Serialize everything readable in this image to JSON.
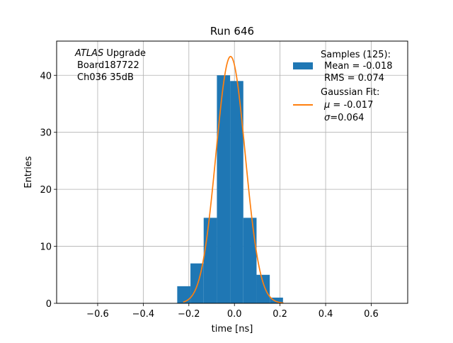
{
  "chart_data": {
    "type": "bar",
    "title": "Run 646",
    "xlabel": "time [ns]",
    "ylabel": "Entries",
    "xlim": [
      -0.78,
      0.76
    ],
    "ylim": [
      0,
      46
    ],
    "grid": true,
    "xticks": [
      "−0.6",
      "−0.4",
      "−0.2",
      "0.0",
      "0.2",
      "0.4",
      "0.6"
    ],
    "xtick_values": [
      -0.6,
      -0.4,
      -0.2,
      0.0,
      0.2,
      0.4,
      0.6
    ],
    "yticks": [
      "0",
      "10",
      "20",
      "30",
      "40"
    ],
    "ytick_values": [
      0,
      10,
      20,
      30,
      40
    ],
    "histogram": {
      "name": "Samples (125):",
      "color": "#1f77b4",
      "bin_edges": [
        -0.251,
        -0.193,
        -0.135,
        -0.077,
        -0.019,
        0.039,
        0.097,
        0.155,
        0.213
      ],
      "counts": [
        3,
        7,
        15,
        40,
        39,
        15,
        5,
        1
      ]
    },
    "fit": {
      "name": "Gaussian Fit:",
      "color": "#ff7f0e",
      "mu": -0.017,
      "sigma": 0.064,
      "amplitude": 43.3,
      "x_range": [
        -0.225,
        0.215
      ]
    },
    "legend_position": "top-right",
    "legend": {
      "samples_title": "Samples (125):",
      "samples_mean": "Mean = -0.018",
      "samples_rms": "RMS = 0.074",
      "fit_title": "Gaussian Fit:",
      "fit_mu_sym": "μ",
      "fit_mu_val": " = -0.017",
      "fit_sigma_sym": "σ",
      "fit_sigma_val": "=0.064"
    },
    "annotation": {
      "italic": "ATLAS",
      "line1_rest": " Upgrade",
      "line2": "Board187722",
      "line3": "Ch036 35dB"
    }
  }
}
